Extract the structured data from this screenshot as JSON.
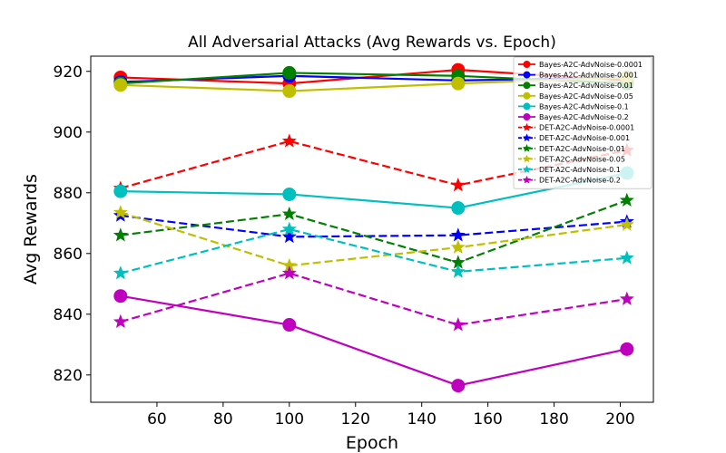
{
  "chart_data": {
    "type": "line",
    "title": "All Adversarial Attacks (Avg Rewards vs. Epoch)",
    "xlabel": "Epoch",
    "ylabel": "Avg Rewards",
    "xlim": [
      40,
      210
    ],
    "ylim": [
      811,
      925
    ],
    "xticks": [
      60,
      80,
      100,
      120,
      140,
      160,
      180,
      200
    ],
    "yticks": [
      820,
      840,
      860,
      880,
      900,
      920
    ],
    "grid": false,
    "legend_position": "top-right",
    "series": [
      {
        "name": "Bayes-A2C-AdvNoise-0.0001",
        "color": "#ff0000",
        "dash": "solid",
        "marker": "circle",
        "x": [
          49,
          100,
          151,
          202
        ],
        "y": [
          918,
          916,
          920.5,
          917
        ]
      },
      {
        "name": "Bayes-A2C-AdvNoise-0.001",
        "color": "#0000ff",
        "dash": "solid",
        "marker": "circle",
        "x": [
          49,
          100,
          151,
          202
        ],
        "y": [
          916.5,
          918.5,
          917,
          918
        ]
      },
      {
        "name": "Bayes-A2C-AdvNoise-0.01",
        "color": "#008000",
        "dash": "solid",
        "marker": "circle",
        "x": [
          49,
          100,
          151,
          202
        ],
        "y": [
          916,
          919.5,
          918.5,
          916
        ]
      },
      {
        "name": "Bayes-A2C-AdvNoise-0.05",
        "color": "#bfbf00",
        "dash": "solid",
        "marker": "circle",
        "x": [
          49,
          100,
          151,
          202
        ],
        "y": [
          915.5,
          913.5,
          916,
          918
        ]
      },
      {
        "name": "Bayes-A2C-AdvNoise-0.1",
        "color": "#00bfbf",
        "dash": "solid",
        "marker": "circle",
        "x": [
          49,
          100,
          151,
          202
        ],
        "y": [
          880.5,
          879.5,
          875,
          886.5
        ]
      },
      {
        "name": "Bayes-A2C-AdvNoise-0.2",
        "color": "#bf00bf",
        "dash": "solid",
        "marker": "circle",
        "x": [
          49,
          100,
          151,
          202
        ],
        "y": [
          846,
          836.5,
          816.5,
          828.5
        ]
      },
      {
        "name": "DET-A2C-AdvNoise-0.0001",
        "color": "#ff0000",
        "dash": "dashed",
        "marker": "star",
        "x": [
          49,
          100,
          151,
          202
        ],
        "y": [
          881.5,
          897,
          882.5,
          894
        ]
      },
      {
        "name": "DET-A2C-AdvNoise-0.001",
        "color": "#0000ff",
        "dash": "dashed",
        "marker": "star",
        "x": [
          49,
          100,
          151,
          202
        ],
        "y": [
          872.5,
          865.5,
          866,
          870.5
        ]
      },
      {
        "name": "DET-A2C-AdvNoise-0.01",
        "color": "#008000",
        "dash": "dashed",
        "marker": "star",
        "x": [
          49,
          100,
          151,
          202
        ],
        "y": [
          866,
          873,
          857,
          877.5
        ]
      },
      {
        "name": "DET-A2C-AdvNoise-0.05",
        "color": "#bfbf00",
        "dash": "dashed",
        "marker": "star",
        "x": [
          49,
          100,
          151,
          202
        ],
        "y": [
          873.5,
          856,
          862,
          869.5
        ]
      },
      {
        "name": "DET-A2C-AdvNoise-0.1",
        "color": "#00bfbf",
        "dash": "dashed",
        "marker": "star",
        "x": [
          49,
          100,
          151,
          202
        ],
        "y": [
          853.5,
          868,
          854,
          858.5
        ]
      },
      {
        "name": "DET-A2C-AdvNoise-0.2",
        "color": "#bf00bf",
        "dash": "dashed",
        "marker": "star",
        "x": [
          49,
          100,
          151,
          202
        ],
        "y": [
          837.5,
          853.5,
          836.5,
          845
        ]
      }
    ]
  }
}
